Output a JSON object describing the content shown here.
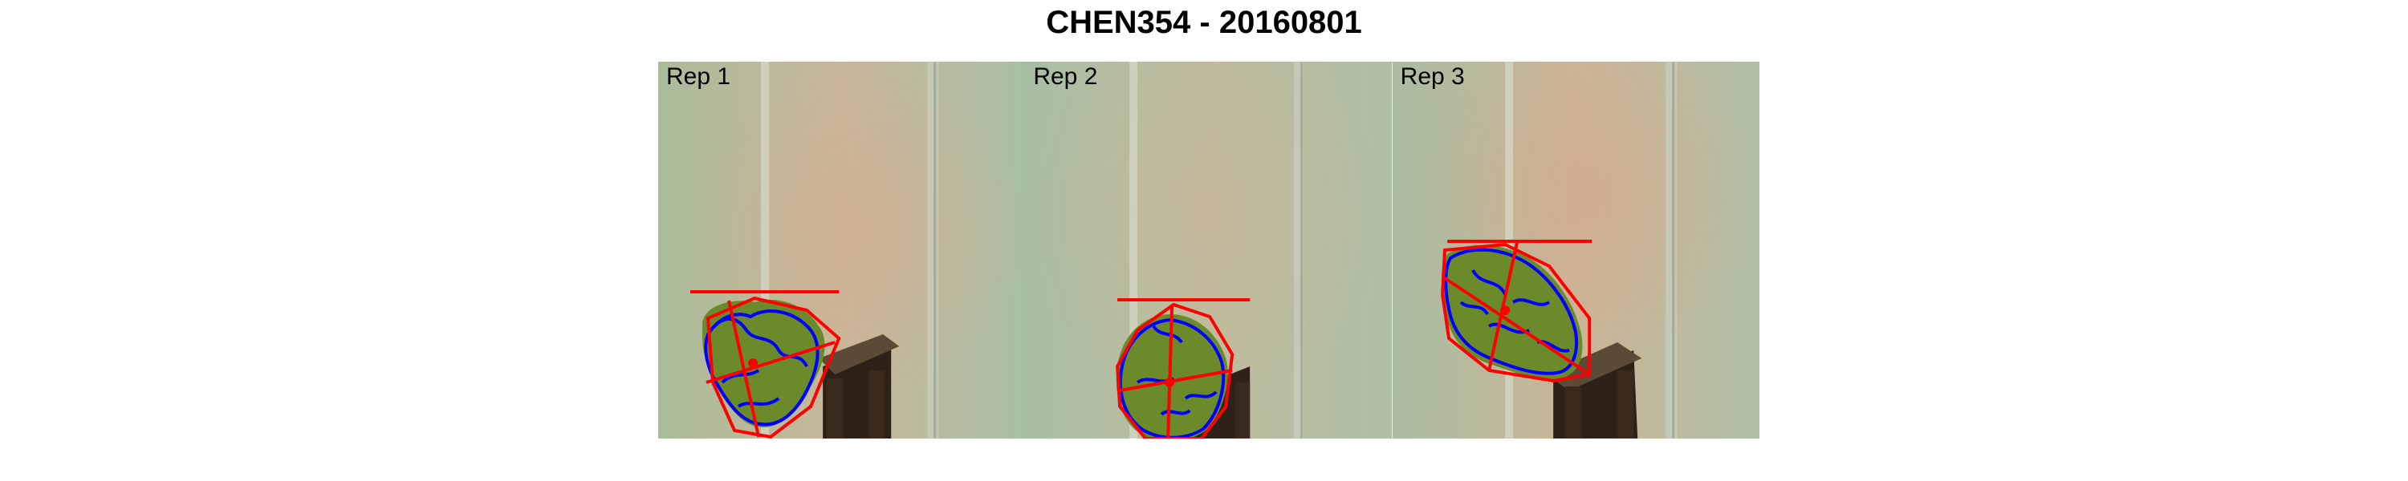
{
  "figure": {
    "title": "CHEN354 - 20160801"
  },
  "panels": [
    {
      "label": "Rep 1"
    },
    {
      "label": "Rep 2"
    },
    {
      "label": "Rep 3"
    }
  ],
  "colors": {
    "background": "#ffffff",
    "convex_hull": "#ff0000",
    "plant_outline": "#0000ff",
    "plant_fill": "#6b8a2a",
    "pot": "#3a2a1e",
    "wall": "#b7c7a8"
  }
}
